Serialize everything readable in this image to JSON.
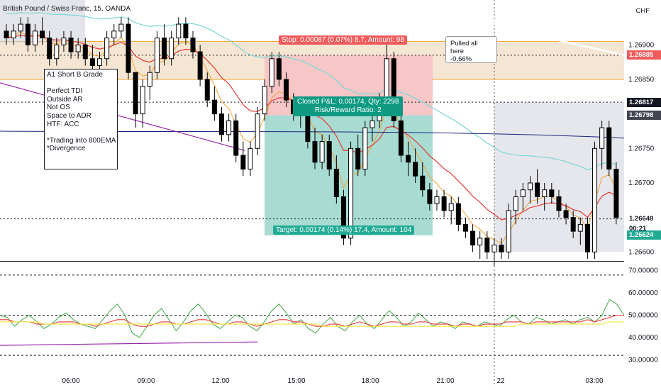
{
  "header": {
    "symbol": "British Pound / Swiss Franc, 15, OANDA",
    "currency": "CHF"
  },
  "note_box": {
    "text": "A1 Short B Grade\n\nPerfect TDI\nOutside AR\nNot OS\nSpace to ADR\nHTF: ACC\n\n*Trading into 800EMA\n*Divergence"
  },
  "callout": {
    "line1": "Pulled all here",
    "line2": "-0.66%"
  },
  "position": {
    "stop_label": "Stop: 0.00087 (0.07%) 8.7, Amount: 98",
    "target_label": "Target: 0.00174 (0.14%) 17.4, Amount: 104",
    "closed_line1": "Closed P&L: 0.00174, Qty: 2298",
    "closed_line2": "Risk/Reward Ratio: 2"
  },
  "price_tags": [
    {
      "label": "1.26885",
      "bg": "#f05b5b",
      "fg": "#ffffff",
      "value": 1.26885
    },
    {
      "label": "1.26817",
      "bg": "#131722",
      "fg": "#ffffff",
      "value": 1.26817
    },
    {
      "label": "1.26798",
      "bg": "#434651",
      "fg": "#ffffff",
      "value": 1.26798
    },
    {
      "label": "1.26648",
      "bg": "#ffffff",
      "fg": "#131722",
      "value": 1.26648
    },
    {
      "label": "00:21",
      "bg": "#ffffff",
      "fg": "#131722",
      "value": 1.26634
    },
    {
      "label": "1.26624",
      "bg": "#22ab94",
      "fg": "#ffffff",
      "value": 1.26624
    }
  ],
  "colors": {
    "candle": "#000000",
    "ema_red": "#e53935",
    "ema_orange": "#f0a030",
    "ema_teal": "#80d8d8",
    "ema_blue": "#1a237e",
    "ema_white": "#ffffff",
    "purple": "#9c27b0",
    "zone": "#f5e6d3",
    "zone_line": "#f0a030",
    "stop_fill": "#f7c6c6",
    "target_fill": "#a8dcd3",
    "grey_box": "#d1d4dc",
    "rsi_green": "#4caf50",
    "rsi_red": "#e53935",
    "rsi_yellow": "#f5e63a"
  },
  "chart_data": [
    {
      "type": "candlestick",
      "title": "British Pound / Swiss Franc, 15, OANDA",
      "ylabel": "CHF",
      "x_ticks": [
        "06:00",
        "09:00",
        "12:00",
        "15:00",
        "18:00",
        "21:00",
        "22",
        "03:00"
      ],
      "y_ticks": [
        1.269,
        1.2685,
        1.268,
        1.2675,
        1.267,
        1.2665,
        1.266
      ],
      "y_tick_labels": [
        "1.26900",
        "1.26850",
        "",
        "1.26750",
        "1.26700",
        "",
        "1.26600"
      ],
      "ylim": [
        1.26587,
        1.26965
      ],
      "bars": 86,
      "candles": [
        [
          1.2692,
          1.2693,
          1.269,
          1.2691
        ],
        [
          1.2691,
          1.2693,
          1.269,
          1.2692
        ],
        [
          1.2692,
          1.2694,
          1.2691,
          1.2693
        ],
        [
          1.2693,
          1.2694,
          1.2689,
          1.269
        ],
        [
          1.269,
          1.2693,
          1.2689,
          1.2692
        ],
        [
          1.2692,
          1.2694,
          1.269,
          1.2691
        ],
        [
          1.2691,
          1.2692,
          1.2687,
          1.2688
        ],
        [
          1.2688,
          1.2691,
          1.2687,
          1.269
        ],
        [
          1.269,
          1.2692,
          1.2689,
          1.2691
        ],
        [
          1.2691,
          1.2692,
          1.2688,
          1.2689
        ],
        [
          1.2689,
          1.2691,
          1.2688,
          1.269
        ],
        [
          1.269,
          1.2691,
          1.2687,
          1.2688
        ],
        [
          1.2688,
          1.269,
          1.2686,
          1.2687
        ],
        [
          1.2687,
          1.2689,
          1.2686,
          1.2688
        ],
        [
          1.2688,
          1.2692,
          1.2687,
          1.2691
        ],
        [
          1.2691,
          1.2693,
          1.269,
          1.2692
        ],
        [
          1.2692,
          1.2694,
          1.2691,
          1.2693
        ],
        [
          1.2693,
          1.2694,
          1.2685,
          1.2686
        ],
        [
          1.2686,
          1.2686,
          1.2678,
          1.268
        ],
        [
          1.268,
          1.2685,
          1.2678,
          1.2684
        ],
        [
          1.2684,
          1.2687,
          1.2682,
          1.2686
        ],
        [
          1.2686,
          1.2692,
          1.2685,
          1.2691
        ],
        [
          1.2691,
          1.2693,
          1.2687,
          1.2688
        ],
        [
          1.2688,
          1.2692,
          1.2687,
          1.2691
        ],
        [
          1.2691,
          1.2694,
          1.269,
          1.2693
        ],
        [
          1.2693,
          1.2694,
          1.269,
          1.2691
        ],
        [
          1.2691,
          1.2692,
          1.2688,
          1.2689
        ],
        [
          1.2689,
          1.269,
          1.2684,
          1.2685
        ],
        [
          1.2685,
          1.2686,
          1.2681,
          1.2682
        ],
        [
          1.2682,
          1.2684,
          1.2679,
          1.268
        ],
        [
          1.268,
          1.2681,
          1.2676,
          1.2677
        ],
        [
          1.2677,
          1.268,
          1.2676,
          1.2679
        ],
        [
          1.2679,
          1.268,
          1.2673,
          1.2674
        ],
        [
          1.2674,
          1.2676,
          1.2671,
          1.2672
        ],
        [
          1.2672,
          1.2676,
          1.2671,
          1.2675
        ],
        [
          1.2675,
          1.2681,
          1.2674,
          1.268
        ],
        [
          1.268,
          1.2685,
          1.2679,
          1.2684
        ],
        [
          1.2684,
          1.2689,
          1.2683,
          1.2688
        ],
        [
          1.2688,
          1.2689,
          1.2684,
          1.2685
        ],
        [
          1.2685,
          1.2686,
          1.2681,
          1.2682
        ],
        [
          1.2682,
          1.2683,
          1.2679,
          1.268
        ],
        [
          1.268,
          1.2682,
          1.2678,
          1.2681
        ],
        [
          1.2681,
          1.2682,
          1.2675,
          1.2676
        ],
        [
          1.2676,
          1.2678,
          1.2672,
          1.2673
        ],
        [
          1.2673,
          1.2677,
          1.2672,
          1.2676
        ],
        [
          1.2676,
          1.2677,
          1.2671,
          1.2672
        ],
        [
          1.2672,
          1.2674,
          1.2667,
          1.2668
        ],
        [
          1.2668,
          1.2669,
          1.2661,
          1.2662
        ],
        [
          1.2662,
          1.2676,
          1.2661,
          1.2675
        ],
        [
          1.2675,
          1.2677,
          1.2671,
          1.2672
        ],
        [
          1.2672,
          1.2679,
          1.2671,
          1.2678
        ],
        [
          1.2678,
          1.268,
          1.2676,
          1.2679
        ],
        [
          1.2679,
          1.2683,
          1.2678,
          1.2682
        ],
        [
          1.2682,
          1.269,
          1.2681,
          1.2688
        ],
        [
          1.2688,
          1.2689,
          1.2678,
          1.2679
        ],
        [
          1.2679,
          1.268,
          1.2673,
          1.2674
        ],
        [
          1.2674,
          1.2676,
          1.2671,
          1.2673
        ],
        [
          1.2673,
          1.2675,
          1.267,
          1.2671
        ],
        [
          1.2671,
          1.2673,
          1.2668,
          1.2669
        ],
        [
          1.2669,
          1.267,
          1.2666,
          1.2667
        ],
        [
          1.2667,
          1.2669,
          1.2666,
          1.2668
        ],
        [
          1.2668,
          1.2669,
          1.2665,
          1.2666
        ],
        [
          1.2666,
          1.2668,
          1.2664,
          1.2667
        ],
        [
          1.2667,
          1.2668,
          1.2663,
          1.2664
        ],
        [
          1.2664,
          1.2665,
          1.2662,
          1.2663
        ],
        [
          1.2663,
          1.2664,
          1.266,
          1.2661
        ],
        [
          1.2661,
          1.2663,
          1.2659,
          1.2662
        ],
        [
          1.2662,
          1.2663,
          1.2659,
          1.266
        ],
        [
          1.266,
          1.2662,
          1.2658,
          1.2661
        ],
        [
          1.2661,
          1.2662,
          1.2659,
          1.266
        ],
        [
          1.266,
          1.2667,
          1.2659,
          1.2666
        ],
        [
          1.2666,
          1.2669,
          1.2664,
          1.2668
        ],
        [
          1.2668,
          1.267,
          1.2666,
          1.2669
        ],
        [
          1.2669,
          1.2671,
          1.2667,
          1.267
        ],
        [
          1.267,
          1.2672,
          1.2667,
          1.2668
        ],
        [
          1.2668,
          1.267,
          1.2666,
          1.2669
        ],
        [
          1.2669,
          1.267,
          1.2667,
          1.2668
        ],
        [
          1.2668,
          1.2669,
          1.2665,
          1.2666
        ],
        [
          1.2666,
          1.2667,
          1.2664,
          1.2665
        ],
        [
          1.2665,
          1.2666,
          1.2662,
          1.2663
        ],
        [
          1.2663,
          1.2665,
          1.2661,
          1.2664
        ],
        [
          1.2664,
          1.2665,
          1.2659,
          1.266
        ],
        [
          1.266,
          1.2676,
          1.2659,
          1.2675
        ],
        [
          1.2675,
          1.2679,
          1.2672,
          1.2678
        ],
        [
          1.2678,
          1.2679,
          1.2671,
          1.2672
        ],
        [
          1.2672,
          1.2673,
          1.2664,
          1.2665
        ]
      ],
      "horizontal_levels": [
        1.26885,
        1.26817,
        1.26648
      ]
    },
    {
      "type": "line",
      "title": "",
      "ylim": [
        26,
        74
      ],
      "y_ticks": [
        70,
        60,
        50,
        40,
        30
      ],
      "y_tick_labels": [
        "70.00000",
        "60.00000",
        "50.00000",
        "40.00000",
        "30.00000"
      ],
      "dashed_levels": [
        68,
        50,
        32
      ],
      "series": [
        {
          "name": "",
          "color": "#4caf50",
          "values": [
            50,
            49,
            45,
            48,
            50,
            47,
            44,
            46,
            49,
            51,
            48,
            46,
            45,
            44,
            48,
            52,
            55,
            50,
            42,
            40,
            45,
            50,
            53,
            48,
            43,
            47,
            52,
            55,
            51,
            46,
            44,
            47,
            50,
            49,
            45,
            43,
            47,
            52,
            55,
            51,
            46,
            48,
            44,
            42,
            46,
            49,
            45,
            43,
            47,
            50,
            46,
            44,
            48,
            52,
            49,
            45,
            47,
            51,
            48,
            45,
            47,
            46,
            44,
            47,
            46,
            45,
            47,
            46,
            45,
            48,
            50,
            47,
            46,
            49,
            48,
            46,
            47,
            48,
            46,
            48,
            49,
            47,
            50,
            57,
            55,
            50
          ]
        },
        {
          "name": "",
          "color": "#e53935",
          "values": [
            48,
            48,
            47,
            47,
            47,
            46,
            46,
            46,
            47,
            47,
            47,
            46,
            46,
            45,
            46,
            47,
            48,
            48,
            46,
            45,
            45,
            46,
            47,
            47,
            46,
            46,
            47,
            48,
            48,
            47,
            46,
            46,
            47,
            47,
            46,
            45,
            46,
            47,
            48,
            48,
            47,
            47,
            46,
            45,
            45,
            46,
            46,
            45,
            46,
            47,
            46,
            45,
            46,
            47,
            47,
            46,
            46,
            47,
            47,
            46,
            46,
            46,
            45,
            46,
            46,
            45,
            46,
            46,
            46,
            47,
            47,
            47,
            46,
            47,
            47,
            47,
            47,
            47,
            47,
            47,
            48,
            47,
            48,
            49,
            50,
            50
          ]
        },
        {
          "name": "",
          "color": "#f5e63a",
          "values": [
            47,
            47,
            47,
            47,
            47,
            47,
            46,
            46,
            46,
            46,
            46,
            46,
            46,
            46,
            46,
            46,
            46,
            46,
            46,
            46,
            46,
            46,
            46,
            46,
            46,
            46,
            46,
            46,
            46,
            46,
            46,
            46,
            46,
            46,
            46,
            46,
            46,
            46,
            46,
            46,
            46,
            46,
            46,
            46,
            45,
            45,
            45,
            45,
            45,
            45,
            45,
            45,
            45,
            45,
            45,
            45,
            45,
            45,
            45,
            45,
            45,
            45,
            45,
            45,
            45,
            45,
            45,
            45,
            45,
            45,
            45,
            46,
            46,
            46,
            46,
            46,
            46,
            46,
            46,
            46,
            46,
            46,
            46,
            47,
            47,
            47
          ]
        }
      ]
    }
  ]
}
